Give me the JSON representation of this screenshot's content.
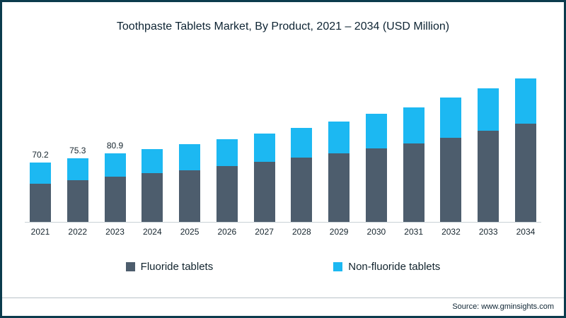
{
  "title": "Toothpaste Tablets Market, By Product, 2021 – 2034 (USD Million)",
  "source": "Source: www.gminsights.com",
  "colors": {
    "fluoride": "#4d5d6d",
    "non_fluoride": "#1cb8f2",
    "border": "#0b3b4d",
    "text": "#12242e"
  },
  "legend": [
    {
      "label": "Fluoride tablets",
      "color_key": "fluoride"
    },
    {
      "label": "Non-fluoride tablets",
      "color_key": "non_fluoride"
    }
  ],
  "chart_data": {
    "type": "bar",
    "stacked": true,
    "title": "Toothpaste Tablets Market, By Product, 2021 – 2034 (USD Million)",
    "xlabel": "",
    "ylabel": "USD Million",
    "ylim": [
      0,
      180
    ],
    "grid": false,
    "legend_position": "bottom",
    "categories": [
      "2021",
      "2022",
      "2023",
      "2024",
      "2025",
      "2026",
      "2027",
      "2028",
      "2029",
      "2030",
      "2031",
      "2032",
      "2033",
      "2034"
    ],
    "series": [
      {
        "name": "Fluoride tablets",
        "values": [
          45.5,
          49.5,
          53.5,
          57.5,
          61.5,
          66,
          71,
          76,
          81,
          87,
          93,
          99.5,
          108,
          116
        ]
      },
      {
        "name": "Non-fluoride tablets",
        "values": [
          24.7,
          25.8,
          27.4,
          29,
          30.5,
          32,
          34,
          35,
          38,
          41,
          43,
          47.5,
          50,
          54
        ]
      }
    ],
    "totals": [
      70.2,
      75.3,
      80.9,
      86.5,
      92,
      98,
      105,
      111,
      119,
      128,
      136,
      147,
      158,
      170
    ],
    "total_labels_shown": [
      "70.2",
      "75.3",
      "80.9",
      "",
      "",
      "",
      "",
      "",
      "",
      "",
      "",
      "",
      "",
      ""
    ]
  }
}
